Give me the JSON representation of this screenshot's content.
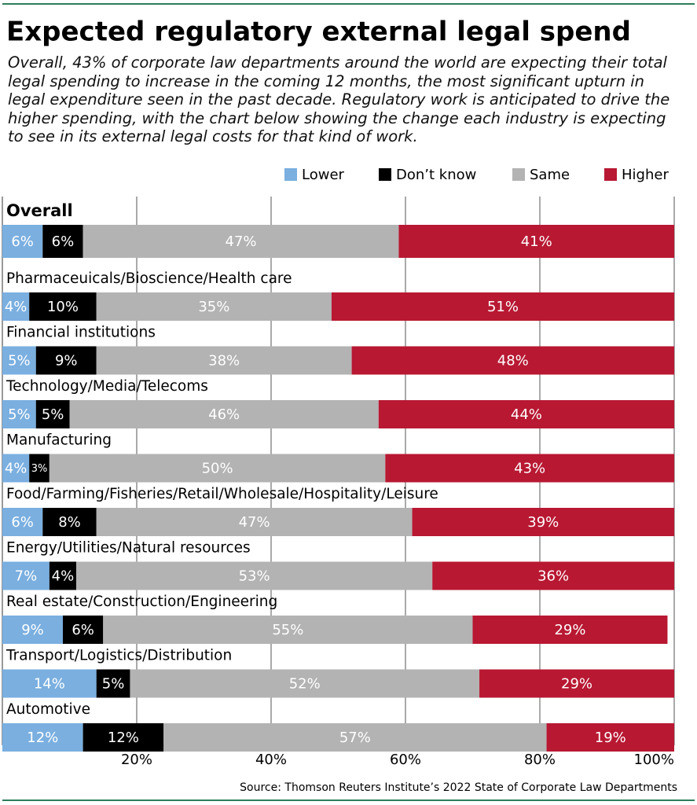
{
  "chart_data": {
    "type": "stacked-barh",
    "title": "Expected regulatory external legal spend",
    "subtitle": "Overall, 43% of corporate law departments around the world are expecting their total legal spending to increase in the coming 12 months, the most significant upturn in legal expenditure seen in the past decade. Regulatory work is anticipated to drive the higher spending, with the chart below showing the change each industry is expecting to see in its external legal costs for that kind of work.",
    "source": "Source: Thomson Reuters Institute’s 2022 State of Corporate Law Departments",
    "categories": [
      "Overall",
      "Pharmaceuicals/Bioscience/Health care",
      "Financial institutions",
      "Technology/Media/Telecoms",
      "Manufacturing",
      "Food/Farming/Fisheries/Retail/Wholesale/Hospitality/Leisure",
      "Energy/Utilities/Natural resources",
      "Real estate/Construction/Engineering",
      "Transport/Logistics/Distribution",
      "Automotive"
    ],
    "series": [
      {
        "name": "Lower",
        "color": "#7aafe0",
        "values": [
          6,
          4,
          5,
          5,
          4,
          6,
          7,
          9,
          14,
          12
        ],
        "value_labels": [
          "6%",
          "4%",
          "5%",
          "5%",
          "4%",
          "6%",
          "7%",
          "9%",
          "14%",
          "12%"
        ]
      },
      {
        "name": "Don’t know",
        "color": "#000000",
        "values": [
          6,
          10,
          9,
          5,
          3,
          8,
          4,
          6,
          5,
          12
        ],
        "value_labels": [
          "6%",
          "10%",
          "9%",
          "5%",
          "3%",
          "8%",
          "4%",
          "6%",
          "5%",
          "12%"
        ]
      },
      {
        "name": "Same",
        "color": "#b3b3b3",
        "values": [
          47,
          35,
          38,
          46,
          50,
          47,
          53,
          55,
          52,
          57
        ],
        "value_labels": [
          "47%",
          "35%",
          "38%",
          "46%",
          "50%",
          "47%",
          "53%",
          "55%",
          "52%",
          "57%"
        ]
      },
      {
        "name": "Higher",
        "color": "#b81832",
        "values": [
          41,
          51,
          48,
          44,
          43,
          39,
          36,
          29,
          29,
          19
        ],
        "value_labels": [
          "41%",
          "51%",
          "48%",
          "44%",
          "43%",
          "39%",
          "36%",
          "29%",
          "29%",
          "19%"
        ]
      }
    ],
    "xlim": [
      0,
      100
    ],
    "xticks": [
      {
        "value": 20,
        "label": "20%"
      },
      {
        "value": 40,
        "label": "40%"
      },
      {
        "value": 60,
        "label": "60%"
      },
      {
        "value": 80,
        "label": "80%"
      },
      {
        "value": 100,
        "label": "100%"
      }
    ],
    "grid": true
  }
}
